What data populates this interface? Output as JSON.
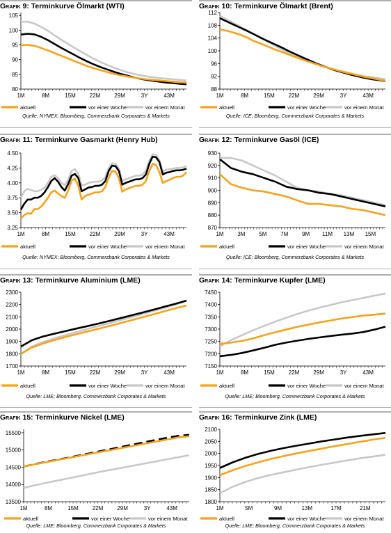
{
  "colors": {
    "aktuell": "#f7a21b",
    "vorWoche": "#000000",
    "vorMonat": "#c8c8c8",
    "rule": "#b0b0b0"
  },
  "legend": [
    "aktuell",
    "vor einer Woche",
    "vor einem Monat"
  ],
  "chart_data": [
    {
      "type": "line",
      "prefix": "Grafik",
      "num": "9:",
      "title": "Terminkurve Ölmarkt (WTI)",
      "source": "Quelle: NYMEX; Bloomberg, Commerzbank Corporates & Markets",
      "xlabels": [
        "1M",
        "8M",
        "15M",
        "22M",
        "29M",
        "3Y",
        "43M"
      ],
      "yticks": [
        80,
        85,
        90,
        95,
        100,
        105
      ],
      "ylim": [
        80,
        106
      ],
      "series": [
        {
          "name": "aktuell",
          "values": [
            94.9,
            95.0,
            94.7,
            94.0,
            93.2,
            92.3,
            91.4,
            90.5,
            89.6,
            88.7,
            87.8,
            87.1,
            86.4,
            85.8,
            85.2,
            84.7,
            84.3,
            83.9,
            83.6,
            83.3,
            83.1,
            82.9,
            82.7,
            82.5,
            82.3,
            82.2
          ]
        },
        {
          "name": "vor einer Woche",
          "values": [
            98.5,
            98.8,
            98.6,
            97.8,
            96.7,
            95.4,
            94.1,
            92.9,
            91.7,
            90.5,
            89.4,
            88.4,
            87.5,
            86.7,
            85.9,
            85.2,
            84.6,
            84.0,
            83.5,
            83.1,
            82.8,
            82.5,
            82.2,
            82.0,
            81.8,
            81.6
          ]
        },
        {
          "name": "vor einem Monat",
          "values": [
            102.8,
            102.9,
            102.3,
            101.2,
            99.9,
            98.4,
            96.9,
            95.5,
            94.1,
            92.8,
            91.5,
            90.3,
            89.2,
            88.2,
            87.3,
            86.5,
            85.8,
            85.2,
            84.7,
            84.3,
            84.0,
            83.7,
            83.5,
            83.3,
            83.1,
            82.9
          ]
        }
      ]
    },
    {
      "type": "line",
      "prefix": "Grafik",
      "num": "10:",
      "title": "Terminkurve Ölmarkt (Brent)",
      "source": "Quelle: ICE; Bloomberg, Commerzbank Corporates & Markets",
      "xlabels": [
        "1M",
        "8M",
        "15M",
        "22M",
        "29M",
        "3Y",
        "43M"
      ],
      "yticks": [
        88,
        92,
        96,
        100,
        104,
        108,
        112
      ],
      "ylim": [
        88,
        112
      ],
      "series": [
        {
          "name": "aktuell",
          "values": [
            106.7,
            106.3,
            105.7,
            105.0,
            104.1,
            103.0,
            102.2,
            101.3,
            100.4,
            99.6,
            98.8,
            98.0,
            97.2,
            96.5,
            95.8,
            95.1,
            94.5,
            93.9,
            93.3,
            92.8,
            92.3,
            91.8,
            91.4,
            91.0,
            90.6
          ]
        },
        {
          "name": "vor einer Woche",
          "values": [
            110.2,
            109.2,
            108.2,
            107.2,
            106.2,
            105.1,
            104.0,
            103.0,
            102.0,
            101.0,
            99.9,
            98.9,
            97.9,
            97.0,
            96.0,
            95.2,
            94.4,
            93.7,
            93.1,
            92.5,
            92.0,
            91.5,
            91.1,
            90.8,
            90.5
          ]
        },
        {
          "name": "vor einem Monat",
          "values": [
            111.0,
            109.8,
            108.7,
            107.5,
            106.3,
            105.2,
            104.1,
            102.8,
            101.6,
            100.4,
            99.3,
            98.3,
            97.4,
            96.6,
            95.8,
            95.1,
            94.5,
            93.9,
            93.4,
            92.9,
            92.4,
            92.0,
            91.7,
            91.4,
            91.1
          ]
        }
      ]
    },
    {
      "type": "line",
      "prefix": "Grafik",
      "num": "11:",
      "title": "Terminkurve Gasmarkt (Henry Hub)",
      "source": "Quelle: NYMEX; Bloomberg, Commerzbank Corporates & Markets",
      "xlabels": [
        "1M",
        "8M",
        "15M",
        "22M",
        "29M",
        "3Y",
        "43M"
      ],
      "yticks": [
        3.25,
        3.5,
        3.75,
        4.0,
        4.25,
        4.5
      ],
      "ylim": [
        3.25,
        4.5
      ],
      "series": [
        {
          "name": "aktuell",
          "values": [
            3.4,
            3.46,
            3.49,
            3.48,
            3.56,
            3.56,
            3.6,
            3.67,
            3.75,
            3.84,
            3.87,
            3.82,
            3.78,
            3.75,
            3.87,
            4.04,
            4.07,
            3.95,
            3.72,
            3.78,
            3.8,
            3.82,
            3.84,
            3.84,
            3.86,
            3.93,
            4.09,
            4.2,
            4.19,
            4.08,
            3.85,
            3.89,
            3.91,
            3.93,
            3.95,
            3.95,
            3.97,
            4.03,
            4.2,
            4.32,
            4.3,
            4.18,
            4.0,
            4.03,
            4.05,
            4.08,
            4.1,
            4.1,
            4.12,
            4.18
          ]
        },
        {
          "name": "vor einer Woche",
          "values": [
            3.55,
            3.65,
            3.72,
            3.72,
            3.75,
            3.75,
            3.78,
            3.84,
            3.93,
            4.03,
            4.08,
            4.02,
            3.93,
            3.87,
            3.98,
            4.12,
            4.15,
            4.08,
            3.86,
            3.89,
            3.92,
            3.93,
            3.95,
            3.95,
            3.97,
            4.03,
            4.2,
            4.29,
            4.28,
            4.2,
            3.97,
            4.0,
            4.02,
            4.04,
            4.06,
            4.06,
            4.08,
            4.14,
            4.32,
            4.44,
            4.43,
            4.35,
            4.14,
            4.17,
            4.18,
            4.2,
            4.21,
            4.21,
            4.22,
            4.24
          ]
        },
        {
          "name": "vor einem Monat",
          "values": [
            3.75,
            3.86,
            3.9,
            3.88,
            3.86,
            3.86,
            3.88,
            3.92,
            4.0,
            4.1,
            4.13,
            4.08,
            4.0,
            3.96,
            4.05,
            4.2,
            4.23,
            4.15,
            3.96,
            3.97,
            4.0,
            4.01,
            4.02,
            4.02,
            4.04,
            4.1,
            4.25,
            4.33,
            4.32,
            4.24,
            4.03,
            4.06,
            4.08,
            4.1,
            4.12,
            4.12,
            4.14,
            4.2,
            4.37,
            4.48,
            4.47,
            4.38,
            4.19,
            4.22,
            4.23,
            4.24,
            4.25,
            4.25,
            4.26,
            4.28
          ]
        }
      ]
    },
    {
      "type": "line",
      "prefix": "Grafik",
      "num": "12:",
      "title": "Terminkurve Gasöl (ICE)",
      "source": "Quelle: ICE; Bloomberg, Commerzbank Corporates & Markets",
      "xlabels": [
        "1M",
        "3M",
        "5M",
        "7M",
        "9M",
        "11M",
        "13M",
        "15M"
      ],
      "yticks": [
        870,
        880,
        890,
        900,
        910,
        920,
        930
      ],
      "ylim": [
        870,
        930
      ],
      "series": [
        {
          "name": "aktuell",
          "values": [
            913,
            905,
            902,
            900,
            899,
            897,
            895,
            892,
            889,
            889,
            888,
            887,
            885,
            884,
            882,
            880
          ]
        },
        {
          "name": "vor einer Woche",
          "values": [
            925,
            918,
            915,
            913,
            910,
            907,
            903,
            901,
            900,
            898,
            897,
            895,
            893,
            891,
            889,
            887
          ]
        },
        {
          "name": "vor einem Monat",
          "values": [
            926,
            926,
            924,
            920,
            916,
            912,
            907,
            902,
            900,
            899,
            897,
            896,
            894,
            892,
            890,
            888
          ]
        }
      ]
    },
    {
      "type": "line",
      "prefix": "Grafik",
      "num": "13:",
      "title": "Terminkurve Aluminium (LME)",
      "source": "Quelle: LME; Bloomberg, Commerzbank Corporates & Markets",
      "xlabels": [
        "1M",
        "8M",
        "15M",
        "22M",
        "29M",
        "3Y",
        "43M"
      ],
      "yticks": [
        1700,
        1800,
        1900,
        2000,
        2100,
        2200,
        2300
      ],
      "ylim": [
        1700,
        2300
      ],
      "series": [
        {
          "name": "aktuell",
          "values": [
            1800,
            1850,
            1882,
            1910,
            1935,
            1958,
            1980,
            2002,
            2025,
            2048,
            2072,
            2096,
            2120,
            2145,
            2170,
            2192
          ]
        },
        {
          "name": "vor einer Woche",
          "values": [
            1858,
            1910,
            1940,
            1962,
            1983,
            2004,
            2024,
            2045,
            2067,
            2089,
            2112,
            2135,
            2158,
            2182,
            2206,
            2232
          ]
        },
        {
          "name": "vor einem Monat",
          "values": [
            1795,
            1858,
            1895,
            1925,
            1951,
            1976,
            2000,
            2024,
            2048,
            2072,
            2097,
            2122,
            2147,
            2173,
            2199,
            2228
          ]
        }
      ]
    },
    {
      "type": "line",
      "prefix": "Grafik",
      "num": "14:",
      "title": "Terminkurve Kupfer (LME)",
      "source": "Quelle: LME; Bloomberg, Commerzbank Corporates & Markets",
      "xlabels": [
        "1M",
        "8M",
        "15M",
        "22M",
        "29M",
        "3Y",
        "43M"
      ],
      "yticks": [
        7150,
        7200,
        7250,
        7300,
        7350,
        7400,
        7450
      ],
      "ylim": [
        7150,
        7450
      ],
      "series": [
        {
          "name": "aktuell",
          "values": [
            7240,
            7245,
            7252,
            7262,
            7275,
            7287,
            7298,
            7309,
            7318,
            7327,
            7335,
            7343,
            7349,
            7355,
            7359,
            7363
          ]
        },
        {
          "name": "vor einer Woche",
          "values": [
            7190,
            7195,
            7203,
            7213,
            7224,
            7236,
            7245,
            7253,
            7260,
            7266,
            7272,
            7277,
            7282,
            7288,
            7298,
            7310
          ]
        },
        {
          "name": "vor einem Monat",
          "values": [
            7230,
            7255,
            7275,
            7295,
            7313,
            7330,
            7346,
            7361,
            7375,
            7387,
            7398,
            7409,
            7418,
            7427,
            7436,
            7445
          ]
        }
      ]
    },
    {
      "type": "line",
      "prefix": "Grafik",
      "num": "15:",
      "title": "Terminkurve Nickel (LME)",
      "source": "Quelle: LME; Bloomberg, Commerzbank Corporates & Markets",
      "xlabels": [
        "1M",
        "8M",
        "15M",
        "22M",
        "29M",
        "3Y",
        "43M"
      ],
      "yticks": [
        13500,
        14000,
        14500,
        15000,
        15500
      ],
      "ylim": [
        13500,
        15600
      ],
      "series": [
        {
          "name": "aktuell",
          "values": [
            14520,
            14585,
            14645,
            14705,
            14765,
            14825,
            14885,
            14945,
            15005,
            15065,
            15125,
            15185,
            15245,
            15305,
            15365,
            15400
          ]
        },
        {
          "name": "vor einer Woche",
          "values": [
            14520,
            14590,
            14655,
            14715,
            14775,
            14840,
            14905,
            14970,
            15035,
            15100,
            15165,
            15230,
            15295,
            15355,
            15410,
            15440
          ]
        },
        {
          "name": "vor einem Monat",
          "values": [
            13900,
            13975,
            14045,
            14110,
            14175,
            14240,
            14305,
            14370,
            14430,
            14490,
            14550,
            14610,
            14670,
            14730,
            14790,
            14850
          ]
        }
      ]
    },
    {
      "type": "line",
      "prefix": "Grafik",
      "num": "16:",
      "title": "Terminkurve Zink (LME)",
      "source": "Quelle: LME; Bloomberg, Commerzbank Corporates & Markets",
      "xlabels": [
        "1M",
        "5M",
        "9M",
        "13M",
        "17M",
        "21M"
      ],
      "yticks": [
        1800,
        1850,
        1900,
        1950,
        2000,
        2050,
        2100
      ],
      "ylim": [
        1800,
        2100
      ],
      "series": [
        {
          "name": "aktuell",
          "values": [
            1910,
            1930,
            1948,
            1963,
            1977,
            1989,
            2000,
            2010,
            2020,
            2030,
            2039,
            2048,
            2057,
            2065
          ]
        },
        {
          "name": "vor einer Woche",
          "values": [
            1940,
            1963,
            1982,
            1998,
            2011,
            2022,
            2032,
            2041,
            2050,
            2058,
            2066,
            2073,
            2079,
            2085
          ]
        },
        {
          "name": "vor einem Monat",
          "values": [
            1835,
            1862,
            1882,
            1898,
            1911,
            1922,
            1933,
            1943,
            1953,
            1962,
            1971,
            1980,
            1987,
            1994
          ]
        }
      ]
    }
  ]
}
